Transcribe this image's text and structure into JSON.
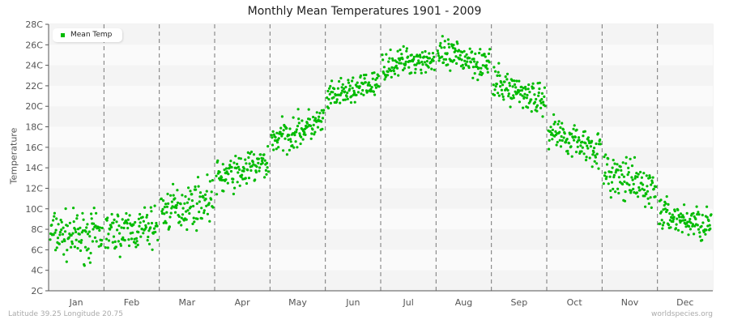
{
  "title": "Monthly Mean Temperatures 1901 - 2009",
  "footer": {
    "left": "Latitude 39.25 Longitude 20.75",
    "right": "worldspecies.org"
  },
  "legend": {
    "label": "Mean Temp",
    "color": "#00bb00"
  },
  "colors": {
    "point": "#00bb00",
    "band_dark": "#f4f4f4",
    "band_light": "#fafafa",
    "divider": "#777777",
    "axis": "#555555"
  },
  "chart_data": {
    "type": "scatter",
    "title": "Monthly Mean Temperatures 1901 - 2009",
    "xlabel": "",
    "ylabel": "Temperature",
    "categories": [
      "Jan",
      "Feb",
      "Mar",
      "Apr",
      "May",
      "Jun",
      "Jul",
      "Aug",
      "Sep",
      "Oct",
      "Nov",
      "Dec"
    ],
    "yticks": [
      "2C",
      "4C",
      "6C",
      "8C",
      "10C",
      "12C",
      "14C",
      "16C",
      "18C",
      "20C",
      "22C",
      "24C",
      "26C",
      "28C"
    ],
    "ylim": [
      2,
      28
    ],
    "grid": "alternating horizontal bands, dashed vertical month dividers",
    "legend_position": "top-left",
    "series": [
      {
        "name": "Mean Temp",
        "years": "1901-2009",
        "approx_monthly_mean": [
          7.3,
          7.8,
          10.3,
          13.7,
          17.6,
          21.6,
          24.5,
          24.8,
          21.5,
          16.7,
          12.6,
          8.8
        ],
        "approx_monthly_min": [
          3.8,
          4.2,
          6.8,
          10.4,
          15.0,
          19.4,
          22.6,
          21.8,
          19.0,
          13.8,
          9.4,
          5.8
        ],
        "approx_monthly_max": [
          11.2,
          10.8,
          13.8,
          16.1,
          20.4,
          23.8,
          26.8,
          27.3,
          24.2,
          19.4,
          16.0,
          11.2
        ]
      }
    ]
  }
}
